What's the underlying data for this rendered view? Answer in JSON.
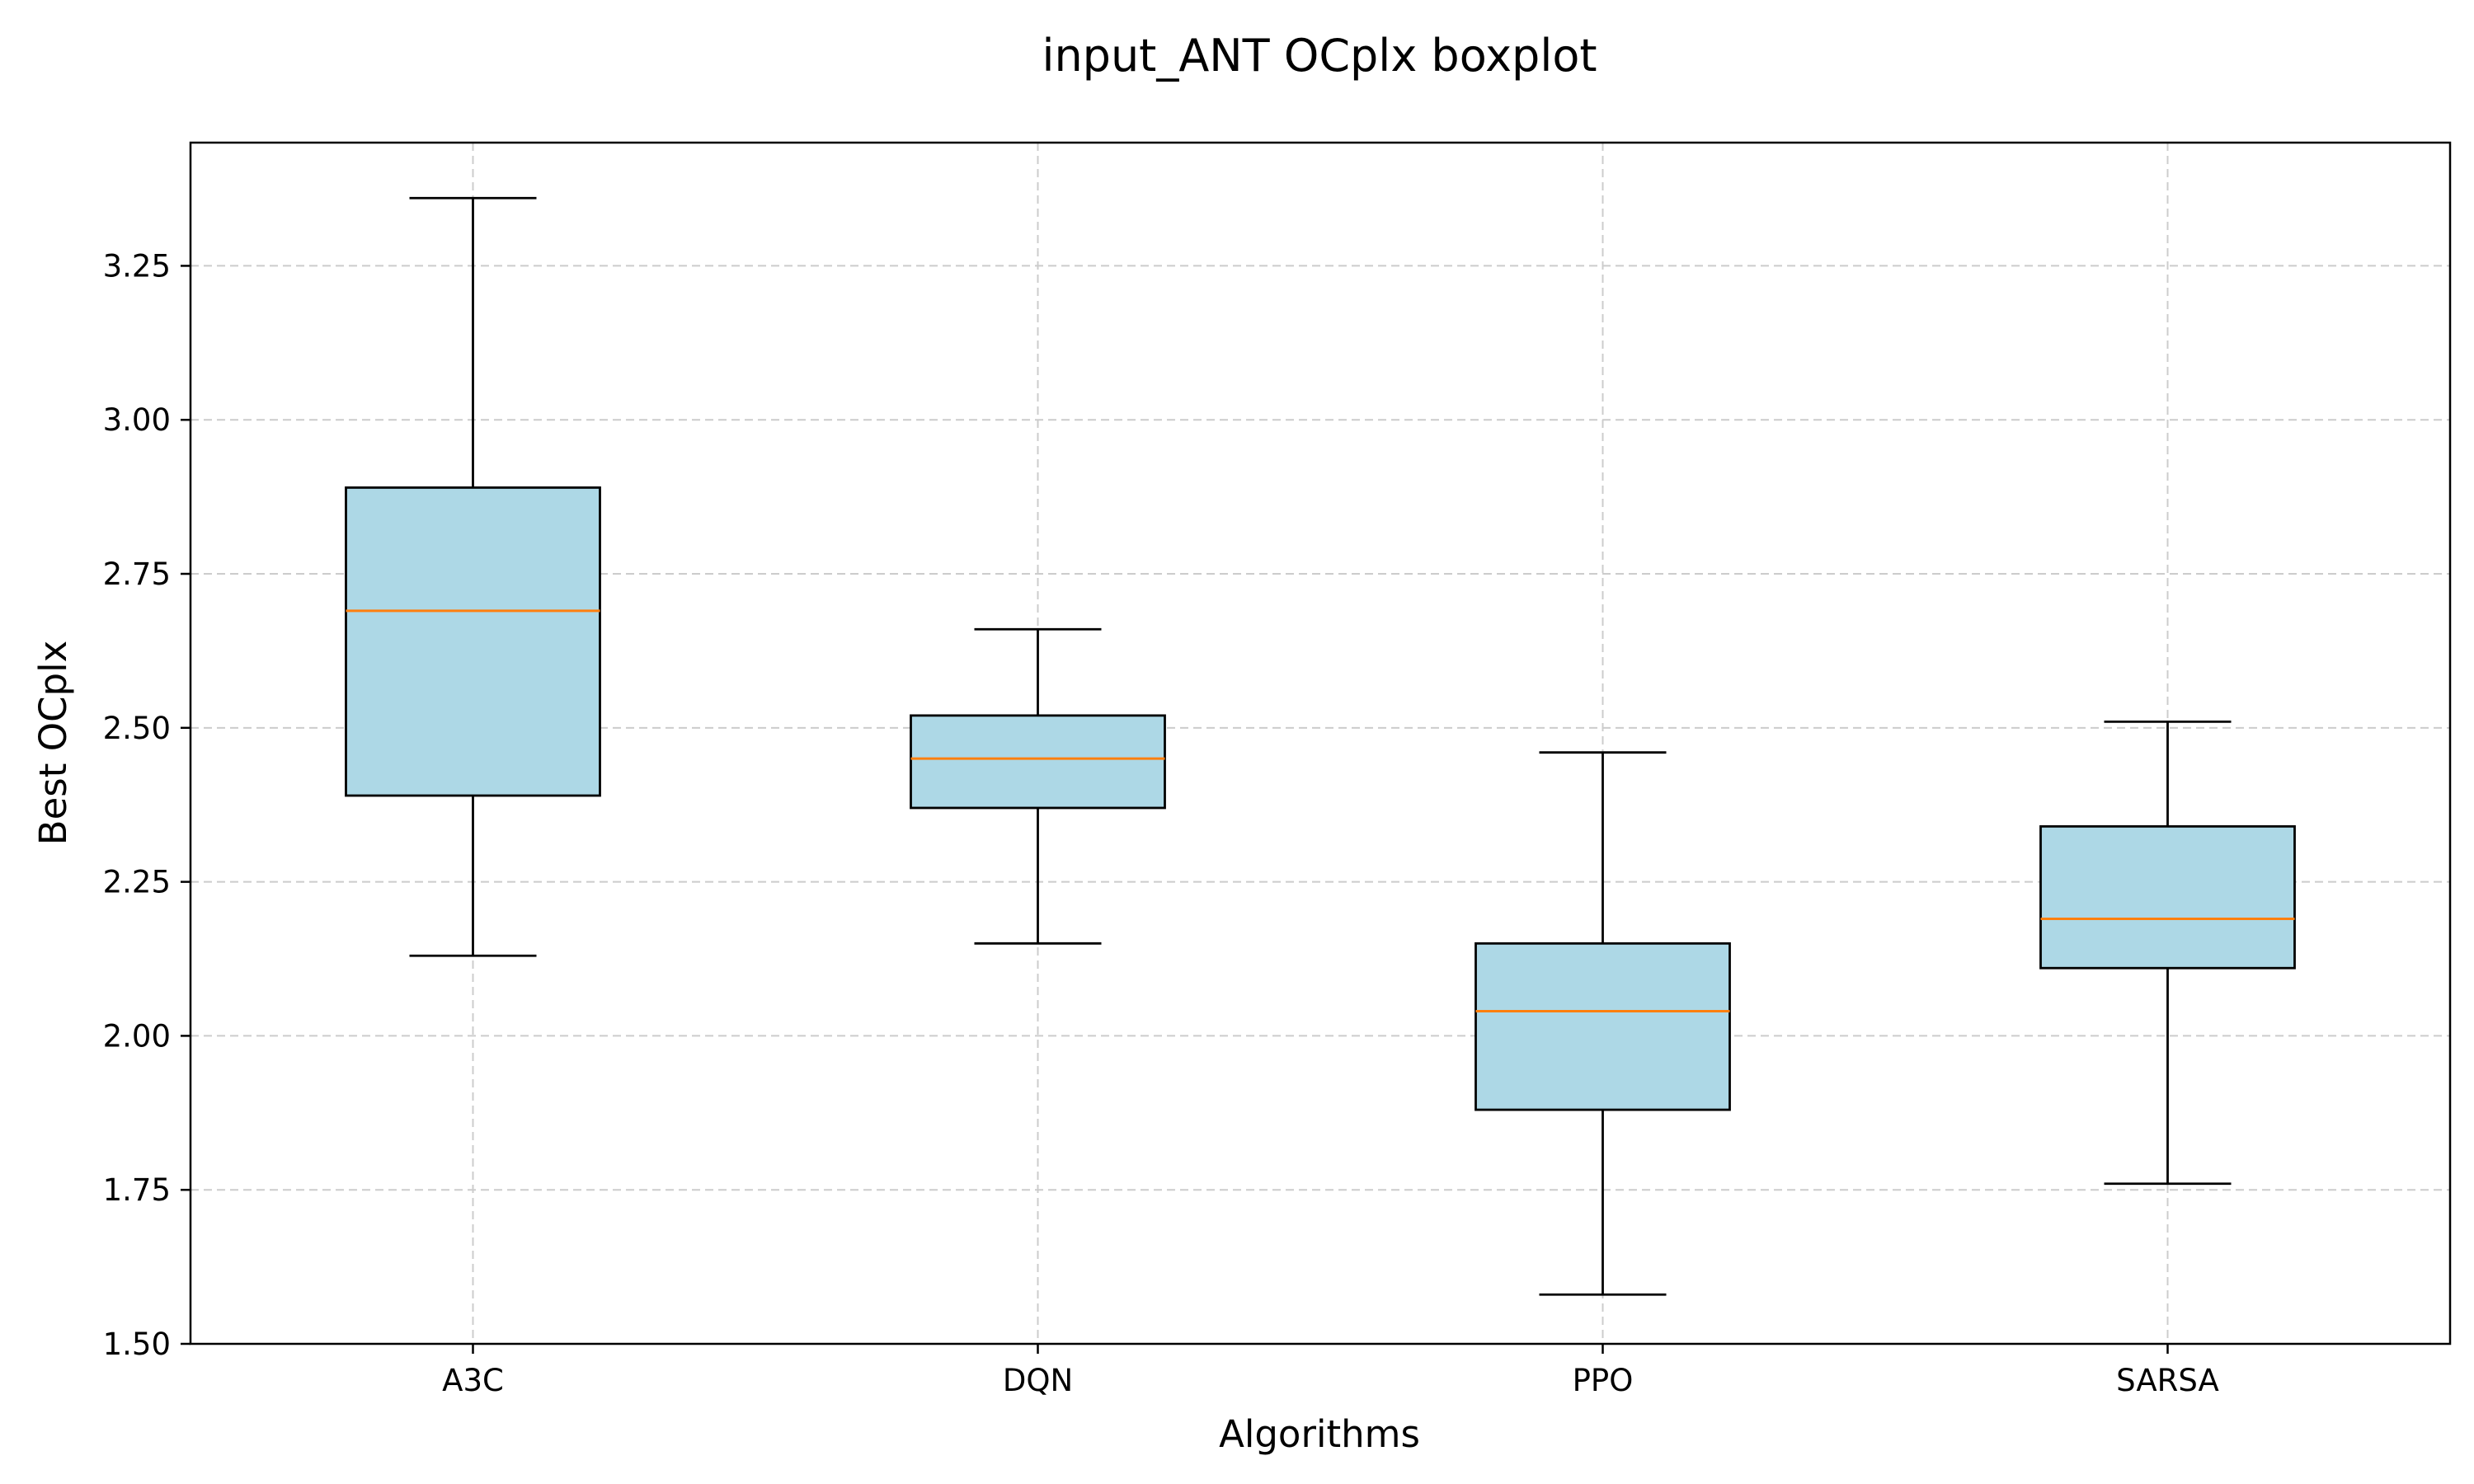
{
  "chart_data": {
    "type": "boxplot",
    "title": "input_ANT OCplx boxplot",
    "xlabel": "Algorithms",
    "ylabel": "Best OCplx",
    "categories": [
      "A3C",
      "DQN",
      "PPO",
      "SARSA"
    ],
    "boxes": [
      {
        "category": "A3C",
        "whisker_low": 2.13,
        "q1": 2.39,
        "median": 2.69,
        "q3": 2.89,
        "whisker_high": 3.36
      },
      {
        "category": "DQN",
        "whisker_low": 2.15,
        "q1": 2.37,
        "median": 2.45,
        "q3": 2.52,
        "whisker_high": 2.66
      },
      {
        "category": "PPO",
        "whisker_low": 1.58,
        "q1": 1.88,
        "median": 2.04,
        "q3": 2.15,
        "whisker_high": 2.46
      },
      {
        "category": "SARSA",
        "whisker_low": 1.76,
        "q1": 2.11,
        "median": 2.19,
        "q3": 2.34,
        "whisker_high": 2.51
      }
    ],
    "ylim": [
      1.5,
      3.45
    ],
    "yticks": [
      "1.50",
      "1.75",
      "2.00",
      "2.25",
      "2.50",
      "2.75",
      "3.00",
      "3.25"
    ],
    "grid": true,
    "colors": {
      "box_fill": "#add8e6",
      "median": "#ff7f0e",
      "grid": "#cccccc",
      "stroke": "#000000"
    }
  }
}
